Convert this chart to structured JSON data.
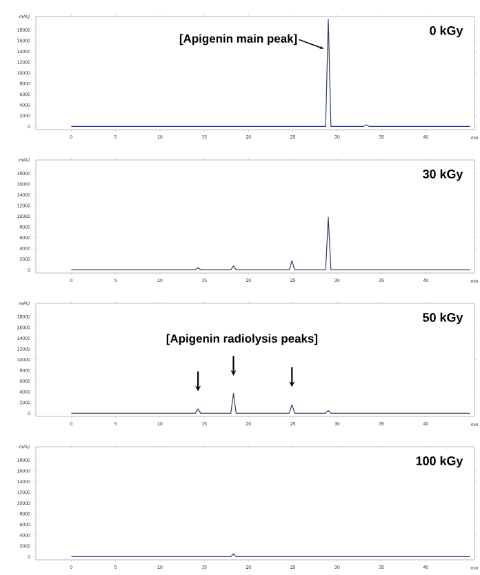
{
  "chart_data": [
    {
      "type": "line",
      "title": "0 kGy",
      "color": "#2f3a66",
      "x": [
        0,
        28.7,
        29.0,
        29.3,
        33.0,
        33.3,
        33.6,
        45
      ],
      "values": [
        0,
        0,
        20000,
        0,
        0,
        300,
        0,
        0
      ],
      "xlim": [
        -4,
        45.5
      ],
      "ylim": [
        -600,
        20500
      ],
      "xlabel": "min",
      "ylabel": "mAU",
      "xticks": [
        0,
        5,
        10,
        15,
        20,
        25,
        30,
        35,
        40
      ],
      "yticks": [
        0,
        2000,
        4000,
        6000,
        8000,
        10000,
        12000,
        14000,
        16000,
        18000
      ],
      "annotations": [
        {
          "text": "[Apigenin main peak]",
          "x": 29.0,
          "y": 14500
        }
      ]
    },
    {
      "type": "line",
      "title": "30 kGy",
      "color": "#2f3a66",
      "x": [
        0,
        14.0,
        14.3,
        14.6,
        18.0,
        18.3,
        18.6,
        24.6,
        24.9,
        25.2,
        28.7,
        29.0,
        29.3,
        45
      ],
      "values": [
        0,
        0,
        400,
        0,
        0,
        700,
        0,
        0,
        1700,
        0,
        0,
        9800,
        0,
        0
      ],
      "xlim": [
        -4,
        45.5
      ],
      "ylim": [
        -600,
        20500
      ],
      "xlabel": "min",
      "ylabel": "mAU",
      "xticks": [
        0,
        5,
        10,
        15,
        20,
        25,
        30,
        35,
        40
      ],
      "yticks": [
        0,
        2000,
        4000,
        6000,
        8000,
        10000,
        12000,
        14000,
        16000,
        18000
      ]
    },
    {
      "type": "line",
      "title": "50 kGy",
      "color": "#2f3a66",
      "x": [
        0,
        14.0,
        14.3,
        14.6,
        18.0,
        18.3,
        18.6,
        24.6,
        24.9,
        25.2,
        28.7,
        29.0,
        29.3,
        45
      ],
      "values": [
        0,
        0,
        800,
        0,
        0,
        3700,
        0,
        0,
        1600,
        0,
        0,
        500,
        0,
        0
      ],
      "xlim": [
        -4,
        45.5
      ],
      "ylim": [
        -600,
        20500
      ],
      "xlabel": "min",
      "ylabel": "mAU",
      "xticks": [
        0,
        5,
        10,
        15,
        20,
        25,
        30,
        35,
        40
      ],
      "yticks": [
        0,
        2000,
        4000,
        6000,
        8000,
        10000,
        12000,
        14000,
        16000,
        18000
      ],
      "annotations": [
        "[Apigenin radiolysis peaks]"
      ]
    },
    {
      "type": "line",
      "title": "100 kGy",
      "color": "#2f3a66",
      "x": [
        0,
        18.0,
        18.3,
        18.6,
        45
      ],
      "values": [
        0,
        0,
        500,
        0,
        0
      ],
      "xlim": [
        -4,
        45.5
      ],
      "ylim": [
        -600,
        20500
      ],
      "xlabel": "min",
      "ylabel": "mAU",
      "xticks": [
        0,
        5,
        10,
        15,
        20,
        25,
        30,
        35,
        40
      ],
      "yticks": [
        0,
        2000,
        4000,
        6000,
        8000,
        10000,
        12000,
        14000,
        16000,
        18000
      ]
    }
  ]
}
